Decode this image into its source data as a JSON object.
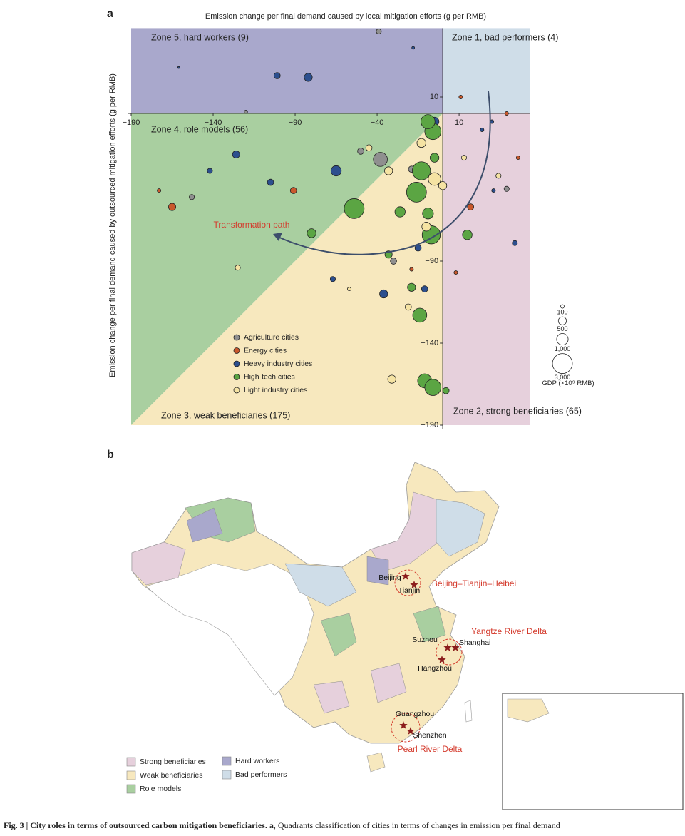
{
  "panel_a_label": "a",
  "panel_b_label": "b",
  "chart_data": {
    "type": "scatter",
    "x_label": "Emission change per final demand caused by local mitigation efforts (g per RMB)",
    "y_label": "Emission change per final demand caused by outsourced mitigation efforts (g per RMB)",
    "xlim": [
      -190,
      53
    ],
    "ylim": [
      -190,
      52
    ],
    "xticks": [
      {
        "value": -190,
        "label": "−190"
      },
      {
        "value": -140,
        "label": "−140"
      },
      {
        "value": -90,
        "label": "−90"
      },
      {
        "value": -40,
        "label": "−40"
      },
      10
    ],
    "yticks": [
      10,
      {
        "value": -90,
        "label": "−90"
      },
      {
        "value": -140,
        "label": "−140"
      },
      {
        "value": -190,
        "label": "−190"
      }
    ],
    "zones": [
      "Zone 5, hard workers (9)",
      "Zone 1, bad performers (4)",
      "Zone 4, role models (56)",
      "Zone 2, strong beneficiaries (65)",
      "Zone 3, weak beneficiaries (175)"
    ],
    "annotation": "Transformation path",
    "series": [
      {
        "name": "Agriculture cities",
        "color": "#8f8f8f",
        "x": [
          -38,
          -39,
          -120,
          -50,
          -19,
          -30,
          39,
          -153
        ],
        "y": [
          -28,
          50,
          1,
          -23,
          -34,
          -90,
          -46,
          -51
        ],
        "size": [
          1500,
          200,
          80,
          300,
          300,
          300,
          200,
          200
        ]
      },
      {
        "name": "Energy cities",
        "color": "#c9582c",
        "x": [
          -165,
          -173,
          -91,
          11,
          46,
          17,
          8,
          39,
          -19
        ],
        "y": [
          -57,
          -47,
          -47,
          10,
          -27,
          -57,
          -97,
          0,
          -95
        ],
        "size": [
          400,
          100,
          300,
          100,
          100,
          300,
          100,
          100,
          100
        ]
      },
      {
        "name": "Heavy industry cities",
        "color": "#2c4f8e",
        "x": [
          -101,
          -82,
          -161,
          -18,
          -5,
          -142,
          -126,
          -105,
          -65,
          -67,
          -36,
          -15,
          -11,
          24,
          30,
          44,
          31
        ],
        "y": [
          23,
          22,
          28,
          40,
          -5,
          -35,
          -25,
          -42,
          -35,
          -101,
          -110,
          -82,
          -107,
          -10,
          -5,
          -79,
          -47
        ],
        "size": [
          300,
          500,
          30,
          60,
          600,
          200,
          400,
          300,
          800,
          200,
          500,
          300,
          300,
          100,
          100,
          200,
          100
        ]
      },
      {
        "name": "High-tech cities",
        "color": "#5ba543",
        "x": [
          -54,
          -6,
          -13,
          -7,
          -16,
          -26,
          -14,
          -11,
          -6,
          2,
          15,
          -80,
          -9,
          -33,
          -19,
          -5,
          -9
        ],
        "y": [
          -58,
          -11,
          -35,
          -74,
          -48,
          -60,
          -123,
          -163,
          -167,
          -169,
          -74,
          -73,
          -5,
          -86,
          -106,
          -27,
          -61
        ],
        "size": [
          3000,
          2000,
          2500,
          2500,
          3000,
          800,
          1500,
          1500,
          2000,
          300,
          700,
          600,
          1500,
          400,
          500,
          600,
          900
        ]
      },
      {
        "name": "Light industry cities",
        "color": "#f5e3a3",
        "x": [
          -31,
          -125,
          -21,
          34,
          -5,
          -33,
          -10,
          -45,
          -13,
          -57,
          13,
          0
        ],
        "y": [
          -162,
          -94,
          -118,
          -38,
          -40,
          -35,
          -69,
          -21,
          -18,
          -107,
          -27,
          -44
        ],
        "size": [
          500,
          200,
          300,
          200,
          1200,
          500,
          600,
          300,
          600,
          100,
          200,
          500
        ]
      }
    ],
    "size_legend": {
      "title": "GDP (×10⁹ RMB)",
      "values": [
        100,
        500,
        1000,
        3000
      ],
      "labels": [
        "100",
        "500",
        "1,000",
        "3,000"
      ]
    }
  },
  "map": {
    "cities": [
      "Beijing",
      "Tianjin",
      "Suzhou",
      "Shanghai",
      "Hangzhou",
      "Guangzhou",
      "Shenzhen"
    ],
    "regions": [
      "Beijing–Tianjin–Heibei",
      "Yangtze River Delta",
      "Pearl River Delta"
    ],
    "legend": [
      "Strong beneficiaries",
      "Weak beneficiaries",
      "Role models",
      "Hard workers",
      "Bad performers"
    ]
  },
  "caption": {
    "bold": "Fig. 3 | City roles in terms of outsourced carbon mitigation beneficiaries. a",
    "text": ", Quadrants classification of cities in terms of changes in emission per final demand"
  }
}
